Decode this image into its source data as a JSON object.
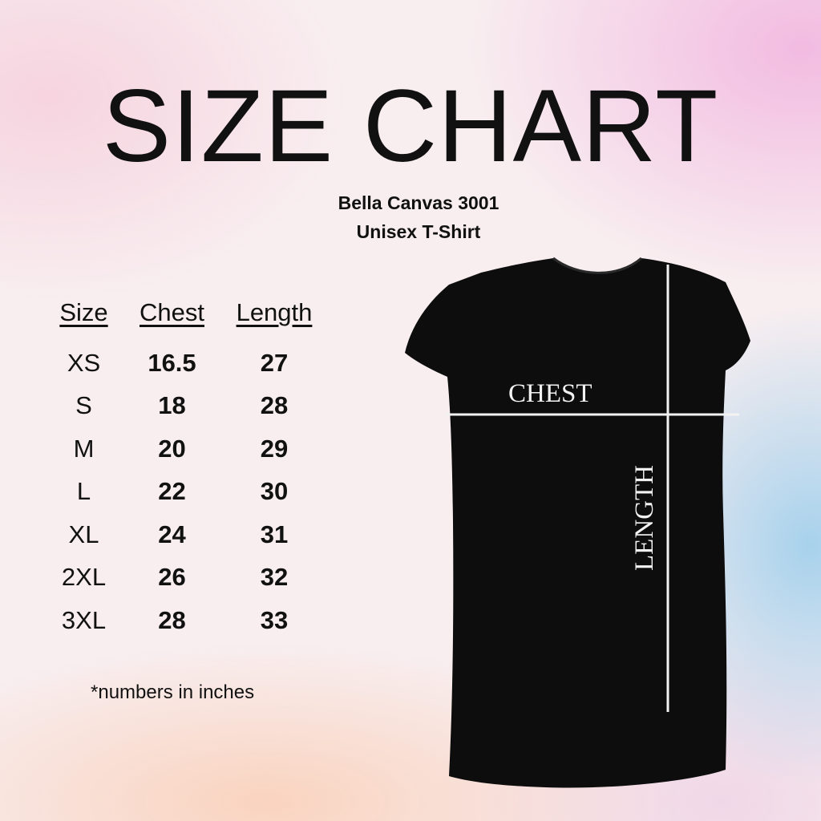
{
  "title": "SIZE CHART",
  "subtitle": {
    "line1": "Bella Canvas 3001",
    "line2": "Unisex T-Shirt"
  },
  "table": {
    "headers": [
      "Size",
      "Chest",
      "Length"
    ],
    "rows": [
      [
        "XS",
        "16.5",
        "27"
      ],
      [
        "S",
        "18",
        "28"
      ],
      [
        "M",
        "20",
        "29"
      ],
      [
        "L",
        "22",
        "30"
      ],
      [
        "XL",
        "24",
        "31"
      ],
      [
        "2XL",
        "26",
        "32"
      ],
      [
        "3XL",
        "28",
        "33"
      ]
    ]
  },
  "note": "*numbers in inches",
  "shirt": {
    "chest_label": "CHEST",
    "length_label": "LENGTH",
    "color": "#0d0d0d"
  }
}
